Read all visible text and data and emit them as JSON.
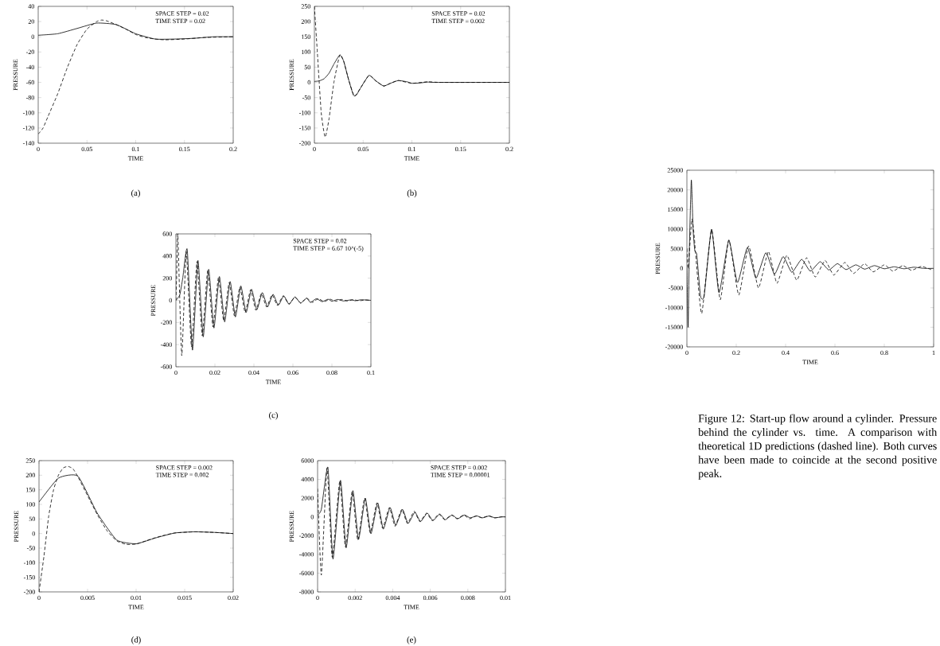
{
  "chart_data": [
    {
      "type": "line",
      "title": "(a)",
      "xlabel": "TIME",
      "ylabel": "PRESSURE",
      "annotations": [
        "SPACE STEP = 0.02",
        "TIME  STEP = 0.02"
      ],
      "xlim": [
        0,
        0.2
      ],
      "ylim": [
        -140,
        40
      ],
      "xticks": [
        0,
        0.05,
        0.1,
        0.15,
        0.2
      ],
      "yticks": [
        -140,
        -120,
        -100,
        -80,
        -60,
        -40,
        -20,
        0,
        20,
        40
      ],
      "series": [
        {
          "color": "#000000",
          "line_style": "solid",
          "x": [
            0,
            0.02,
            0.04,
            0.06,
            0.08,
            0.1,
            0.12,
            0.14,
            0.16,
            0.18,
            0.2
          ],
          "values": [
            2,
            4,
            11,
            18,
            16,
            4,
            -3,
            -3,
            -2,
            0,
            0
          ]
        },
        {
          "color": "#000000",
          "line_style": "dashed",
          "x": [
            0,
            0.005,
            0.01,
            0.02,
            0.03,
            0.04,
            0.05,
            0.06,
            0.065,
            0.07,
            0.08,
            0.09,
            0.1,
            0.11,
            0.12,
            0.13,
            0.15,
            0.17,
            0.2
          ],
          "values": [
            -128,
            -120,
            -105,
            -75,
            -40,
            -10,
            10,
            20,
            22,
            21,
            16,
            10,
            3,
            -1,
            -3,
            -4,
            -3,
            -1,
            0
          ]
        }
      ]
    },
    {
      "type": "line",
      "title": "(b)",
      "xlabel": "TIME",
      "ylabel": "PRESSURE",
      "annotations": [
        "SPACE STEP = 0.02",
        "TIME  STEP = 0.002"
      ],
      "xlim": [
        0,
        0.2
      ],
      "ylim": [
        -200,
        250
      ],
      "xticks": [
        0,
        0.05,
        0.1,
        0.15,
        0.2
      ],
      "yticks": [
        -200,
        -150,
        -100,
        -50,
        0,
        50,
        100,
        150,
        200,
        250
      ],
      "series": [
        {
          "color": "#000000",
          "line_style": "solid",
          "x": [
            0,
            0.005,
            0.01,
            0.015,
            0.02,
            0.026,
            0.03,
            0.035,
            0.04,
            0.043,
            0.048,
            0.056,
            0.063,
            0.071,
            0.078,
            0.086,
            0.095,
            0.1,
            0.108,
            0.116,
            0.125,
            0.2
          ],
          "values": [
            3,
            5,
            12,
            30,
            60,
            90,
            70,
            10,
            -42,
            -42,
            -15,
            23,
            5,
            -12,
            -3,
            6,
            2,
            -3,
            -2,
            1,
            0,
            0
          ]
        },
        {
          "color": "#000000",
          "line_style": "dashed",
          "x": [
            0,
            0.003,
            0.007,
            0.011,
            0.015,
            0.02,
            0.026,
            0.03,
            0.035,
            0.041,
            0.048,
            0.056,
            0.063,
            0.071,
            0.078,
            0.086,
            0.1,
            0.116,
            0.13,
            0.2
          ],
          "values": [
            250,
            100,
            -100,
            -180,
            -120,
            0,
            90,
            70,
            10,
            -45,
            -15,
            23,
            5,
            -12,
            -3,
            6,
            -3,
            2,
            0,
            0
          ]
        }
      ]
    },
    {
      "type": "line",
      "title": "(c)",
      "xlabel": "TIME",
      "ylabel": "PRESSURE",
      "annotations": [
        "SPACE STEP = 0.02",
        "TIME  STEP = 6.67 10^(-5)"
      ],
      "xlim": [
        0,
        0.1
      ],
      "ylim": [
        -600,
        600
      ],
      "xticks": [
        0,
        0.02,
        0.04,
        0.06,
        0.08,
        0.1
      ],
      "yticks": [
        -600,
        -400,
        -200,
        0,
        200,
        400,
        600
      ],
      "series": [
        {
          "color": "#000000",
          "line_style": "solid",
          "x": [
            0,
            0.002,
            0.0035,
            0.0058,
            0.0085,
            0.0113,
            0.014,
            0.0168,
            0.0195,
            0.0223,
            0.025,
            0.0278,
            0.0305,
            0.0333,
            0.036,
            0.0388,
            0.0415,
            0.0443,
            0.047,
            0.0498,
            0.0525,
            0.0553,
            0.058,
            0.061,
            0.064,
            0.067,
            0.069,
            0.072,
            0.075,
            0.078,
            0.08,
            0.083,
            0.086,
            0.09,
            0.092,
            0.095,
            0.1
          ],
          "values": [
            0,
            50,
            200,
            460,
            -450,
            360,
            -330,
            280,
            -250,
            215,
            -195,
            170,
            -150,
            130,
            -110,
            100,
            -85,
            70,
            -60,
            55,
            -45,
            40,
            -35,
            30,
            -25,
            20,
            -20,
            15,
            -12,
            10,
            -8,
            8,
            -6,
            5,
            -4,
            5,
            0
          ]
        },
        {
          "color": "#000000",
          "line_style": "dashed",
          "x": [
            0,
            0.0005,
            0.001,
            0.003,
            0.0053,
            0.008,
            0.0108,
            0.0135,
            0.0163,
            0.019,
            0.0218,
            0.0245,
            0.0273,
            0.03,
            0.0328,
            0.0355,
            0.0383,
            0.041,
            0.0438,
            0.0465,
            0.0493,
            0.052,
            0.055,
            0.058,
            0.061,
            0.064,
            0.067,
            0.07,
            0.073,
            0.076,
            0.079,
            0.082,
            0.085,
            0.088,
            0.091,
            0.094,
            0.097,
            0.1
          ],
          "values": [
            0,
            300,
            590,
            -500,
            440,
            -420,
            350,
            -320,
            270,
            -240,
            205,
            -185,
            160,
            -140,
            120,
            -110,
            95,
            -90,
            60,
            -60,
            50,
            -45,
            40,
            -35,
            30,
            -25,
            20,
            -18,
            15,
            -12,
            10,
            -8,
            8,
            -6,
            5,
            -4,
            3,
            0
          ]
        }
      ]
    },
    {
      "type": "line",
      "title": "(d)",
      "xlabel": "TIME",
      "ylabel": "PRESSURE",
      "annotations": [
        "SPACE STEP = 0.002",
        "TIME  STEP = 0.002"
      ],
      "xlim": [
        0,
        0.02
      ],
      "ylim": [
        -200,
        250
      ],
      "xticks": [
        0,
        0.005,
        0.01,
        0.015,
        0.02
      ],
      "yticks": [
        -200,
        -150,
        -100,
        -50,
        0,
        50,
        100,
        150,
        200,
        250
      ],
      "series": [
        {
          "color": "#000000",
          "line_style": "solid",
          "x": [
            0,
            0.002,
            0.004,
            0.006,
            0.008,
            0.01,
            0.012,
            0.014,
            0.016,
            0.018,
            0.02
          ],
          "values": [
            108,
            190,
            197,
            70,
            -22,
            -35,
            -15,
            2,
            6,
            4,
            0
          ]
        },
        {
          "color": "#000000",
          "line_style": "dashed",
          "x": [
            0,
            0.0005,
            0.001,
            0.0015,
            0.002,
            0.0025,
            0.003,
            0.0035,
            0.004,
            0.005,
            0.006,
            0.007,
            0.008,
            0.009,
            0.01,
            0.011,
            0.012,
            0.013,
            0.014,
            0.016,
            0.018,
            0.02
          ],
          "values": [
            -200,
            -80,
            60,
            150,
            200,
            225,
            230,
            222,
            195,
            130,
            65,
            10,
            -25,
            -37,
            -36,
            -25,
            -14,
            -5,
            2,
            6,
            4,
            0
          ]
        }
      ]
    },
    {
      "type": "line",
      "title": "(e)",
      "xlabel": "TIME",
      "ylabel": "PRESSURE",
      "annotations": [
        "SPACE STEP = 0.002",
        "TIME  STEP = 0.00001"
      ],
      "xlim": [
        0,
        0.01
      ],
      "ylim": [
        -8000,
        6000
      ],
      "xticks": [
        0,
        0.002,
        0.004,
        0.006,
        0.008,
        0.01
      ],
      "yticks": [
        -8000,
        -6000,
        -4000,
        -2000,
        0,
        2000,
        4000,
        6000
      ],
      "series": [
        {
          "color": "#000000",
          "line_style": "solid",
          "x": [
            0,
            0.0002,
            0.00055,
            0.00082,
            0.00122,
            0.00152,
            0.00188,
            0.00218,
            0.00254,
            0.00284,
            0.0032,
            0.0035,
            0.00386,
            0.00416,
            0.00452,
            0.00482,
            0.00518,
            0.00548,
            0.00584,
            0.00614,
            0.0065,
            0.0068,
            0.00716,
            0.00746,
            0.00782,
            0.00812,
            0.00848,
            0.00878,
            0.00914,
            0.00944,
            0.0098,
            0.01
          ],
          "values": [
            200,
            800,
            5300,
            -4500,
            3900,
            -3300,
            2800,
            -2400,
            2000,
            -1800,
            1500,
            -1300,
            1000,
            -900,
            800,
            -700,
            500,
            -500,
            400,
            -400,
            300,
            -300,
            200,
            -200,
            200,
            -100,
            100,
            -100,
            100,
            -100,
            0,
            0
          ]
        },
        {
          "color": "#000000",
          "line_style": "dashed",
          "x": [
            0,
            0.0002,
            0.0005,
            0.00078,
            0.00118,
            0.00148,
            0.00184,
            0.00214,
            0.0025,
            0.0028,
            0.00316,
            0.00346,
            0.00382,
            0.00412,
            0.00448,
            0.00478,
            0.00514,
            0.00544,
            0.0058,
            0.0061,
            0.00646,
            0.00676,
            0.00712,
            0.00742,
            0.00778,
            0.00808,
            0.00844,
            0.00874,
            0.0091,
            0.0094,
            0.00976,
            0.01
          ],
          "values": [
            3000,
            -6200,
            5200,
            -4300,
            3800,
            -3200,
            2700,
            -2500,
            2000,
            -1700,
            1500,
            -1200,
            1000,
            -1000,
            800,
            -700,
            600,
            -500,
            400,
            -400,
            300,
            -300,
            200,
            -200,
            200,
            -200,
            100,
            -100,
            100,
            -100,
            0,
            0
          ]
        }
      ]
    },
    {
      "type": "line",
      "xlabel": "TIME",
      "ylabel": "PRESSURE",
      "annotations": [
        "Figure 12: Start-up flow around a cylinder. Pressure behind the cylinder vs. time. A comparison with theoretical 1D predictions (dashed line). Both curves have been made to coincide at the second positive peak."
      ],
      "xlim": [
        0,
        1
      ],
      "ylim": [
        -20000,
        25000
      ],
      "xticks": [
        0,
        0.2,
        0.4,
        0.6,
        0.8,
        1
      ],
      "yticks": [
        -20000,
        -15000,
        -10000,
        -5000,
        0,
        5000,
        10000,
        15000,
        20000,
        25000
      ],
      "series": [
        {
          "color": "#000000",
          "line_style": "solid",
          "x": [
            0,
            0.005,
            0.01,
            0.018,
            0.025,
            0.032,
            0.04,
            0.055,
            0.07,
            0.1,
            0.13,
            0.17,
            0.205,
            0.245,
            0.28,
            0.32,
            0.355,
            0.39,
            0.425,
            0.465,
            0.5,
            0.54,
            0.575,
            0.61,
            0.645,
            0.685,
            0.72,
            0.76,
            0.8,
            0.84,
            0.88,
            0.92,
            0.96,
            1.0
          ],
          "values": [
            0,
            -15000,
            5000,
            22500,
            10000,
            4500,
            3500,
            -7000,
            -7000,
            10000,
            -6200,
            7200,
            -3600,
            5300,
            -2500,
            4000,
            -1500,
            3000,
            -1000,
            2300,
            -700,
            1700,
            -400,
            1200,
            -300,
            900,
            -200,
            700,
            -100,
            400,
            -100,
            300,
            0,
            0
          ]
        },
        {
          "color": "#000000",
          "line_style": "dashed",
          "x": [
            0,
            0.005,
            0.02,
            0.03,
            0.035,
            0.06,
            0.1,
            0.135,
            0.17,
            0.21,
            0.25,
            0.29,
            0.33,
            0.365,
            0.405,
            0.445,
            0.485,
            0.52,
            0.56,
            0.595,
            0.64,
            0.675,
            0.72,
            0.755,
            0.8,
            0.835,
            0.875,
            0.91,
            0.95,
            0.99,
            1.0
          ],
          "values": [
            5000,
            0,
            12500,
            8000,
            4000,
            -11500,
            9800,
            -8000,
            7200,
            -6800,
            5700,
            -5000,
            4300,
            -3800,
            3300,
            -3000,
            2700,
            -2200,
            2000,
            -1700,
            1500,
            -1300,
            1200,
            -900,
            900,
            -700,
            700,
            -500,
            500,
            -300,
            -300
          ]
        }
      ]
    }
  ]
}
